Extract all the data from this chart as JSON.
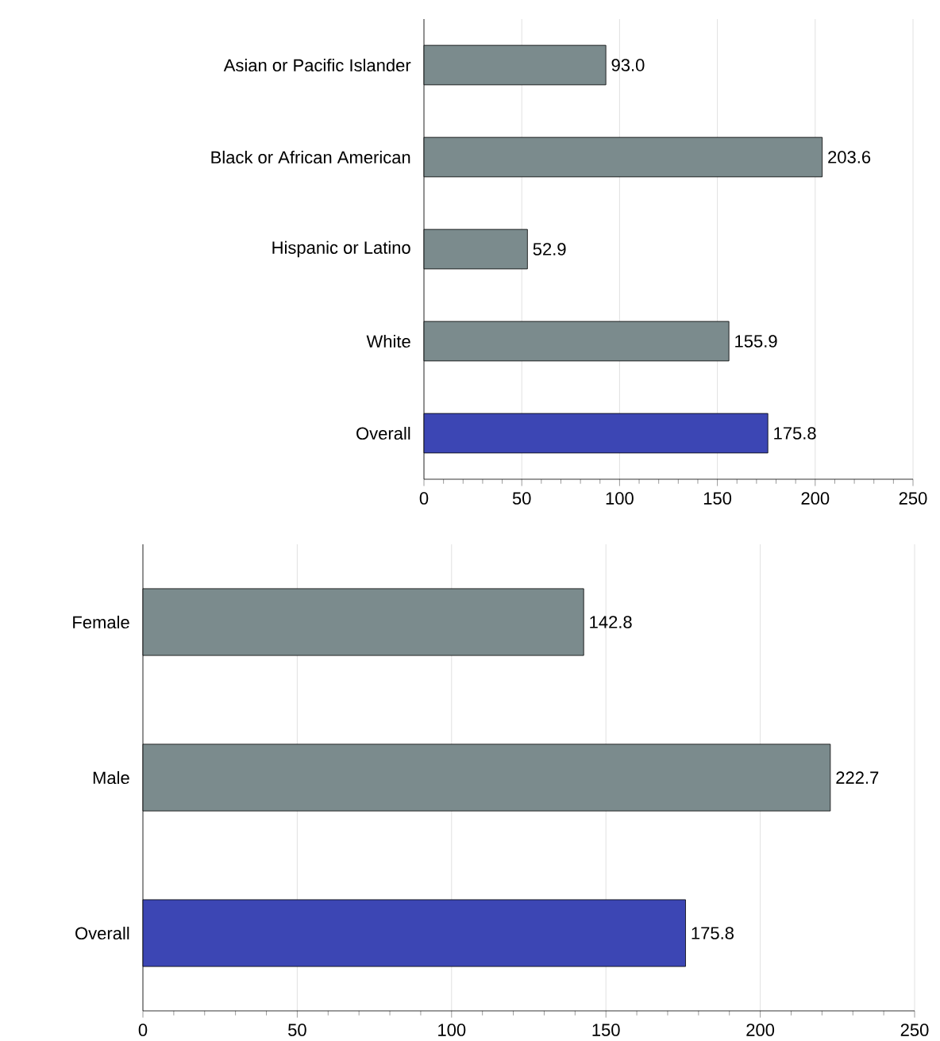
{
  "chart_data": [
    {
      "type": "bar",
      "orientation": "horizontal",
      "categories": [
        "Asian or Pacific Islander",
        "Black or African American",
        "Hispanic or Latino",
        "White",
        "Overall"
      ],
      "values": [
        93.0,
        203.6,
        52.9,
        155.9,
        175.8
      ],
      "value_labels": [
        "93.0",
        "203.6",
        "52.9",
        "155.9",
        "175.8"
      ],
      "colors": [
        "#7b8b8d",
        "#7b8b8d",
        "#7b8b8d",
        "#7b8b8d",
        "#3c46b4"
      ],
      "xlim": [
        0,
        250
      ],
      "xticks": [
        0,
        50,
        100,
        150,
        200,
        250
      ],
      "grid": "x"
    },
    {
      "type": "bar",
      "orientation": "horizontal",
      "categories": [
        "Female",
        "Male",
        "Overall"
      ],
      "values": [
        142.8,
        222.7,
        175.8
      ],
      "value_labels": [
        "142.8",
        "222.7",
        "175.8"
      ],
      "colors": [
        "#7b8b8d",
        "#7b8b8d",
        "#3c46b4"
      ],
      "xlim": [
        0,
        250
      ],
      "xticks": [
        0,
        50,
        100,
        150,
        200,
        250
      ],
      "grid": "x"
    }
  ]
}
